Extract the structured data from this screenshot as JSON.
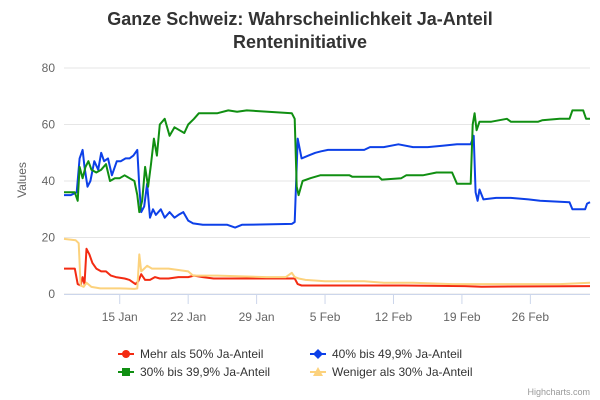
{
  "chart_data": {
    "type": "line",
    "title_line1": "Ganze Schweiz: Wahrscheinlichkeit Ja-Anteil",
    "title_line2": "Renteninitiative",
    "ylabel": "Values",
    "xlabel": "",
    "ylim": [
      0,
      80
    ],
    "yticks": [
      0,
      20,
      40,
      60,
      80
    ],
    "grid": true,
    "legend_position": "bottom",
    "x_ticks": [
      {
        "day": 15,
        "label": "15 Jan"
      },
      {
        "day": 22,
        "label": "22 Jan"
      },
      {
        "day": 29,
        "label": "29 Jan"
      },
      {
        "day": 36,
        "label": "5 Feb"
      },
      {
        "day": 43,
        "label": "12 Feb"
      },
      {
        "day": 50,
        "label": "19 Feb"
      },
      {
        "day": 57,
        "label": "26 Feb"
      }
    ],
    "xrange": [
      9.3,
      63.1
    ],
    "series": [
      {
        "name": "Mehr als 50% Ja-Anteil",
        "color": "#f32b12",
        "marker": "circle",
        "points": [
          [
            9.3,
            9
          ],
          [
            10.4,
            9
          ],
          [
            10.7,
            3.5
          ],
          [
            11.0,
            3
          ],
          [
            11.2,
            6
          ],
          [
            11.4,
            3.5
          ],
          [
            11.6,
            16
          ],
          [
            11.9,
            14
          ],
          [
            12.2,
            11
          ],
          [
            12.6,
            9
          ],
          [
            13.1,
            8
          ],
          [
            13.6,
            8
          ],
          [
            14.1,
            6.5
          ],
          [
            14.6,
            6
          ],
          [
            15.5,
            5.5
          ],
          [
            16.0,
            5
          ],
          [
            16.6,
            3.5
          ],
          [
            16.9,
            4.5
          ],
          [
            17.2,
            7
          ],
          [
            17.6,
            5
          ],
          [
            18.1,
            5
          ],
          [
            18.6,
            6
          ],
          [
            19.1,
            5.5
          ],
          [
            20.0,
            5.5
          ],
          [
            21.0,
            6
          ],
          [
            22.0,
            6
          ],
          [
            22.6,
            6.5
          ],
          [
            23.5,
            6
          ],
          [
            24.6,
            5.5
          ],
          [
            29.0,
            5.5
          ],
          [
            32.9,
            5.5
          ],
          [
            33.2,
            3.5
          ],
          [
            33.6,
            3
          ],
          [
            36.0,
            3
          ],
          [
            44.0,
            3
          ],
          [
            50.3,
            2.8
          ],
          [
            52.0,
            2.6
          ],
          [
            63.1,
            2.8
          ]
        ]
      },
      {
        "name": "40% bis 49,9% Ja-Anteil",
        "color": "#0d40e8",
        "marker": "diamond",
        "points": [
          [
            9.3,
            35
          ],
          [
            10.0,
            35
          ],
          [
            10.6,
            36
          ],
          [
            10.9,
            48
          ],
          [
            11.2,
            51
          ],
          [
            11.4,
            45
          ],
          [
            11.7,
            38
          ],
          [
            12.0,
            40
          ],
          [
            12.4,
            47
          ],
          [
            12.8,
            44
          ],
          [
            13.1,
            50
          ],
          [
            13.4,
            47
          ],
          [
            13.8,
            48
          ],
          [
            14.2,
            42
          ],
          [
            14.7,
            47
          ],
          [
            15.1,
            47
          ],
          [
            15.6,
            48
          ],
          [
            16.0,
            48
          ],
          [
            16.4,
            49
          ],
          [
            16.8,
            51
          ],
          [
            17.0,
            38
          ],
          [
            17.2,
            29
          ],
          [
            17.5,
            31
          ],
          [
            17.8,
            39
          ],
          [
            18.1,
            27
          ],
          [
            18.4,
            30
          ],
          [
            18.7,
            28
          ],
          [
            19.2,
            30
          ],
          [
            19.6,
            27
          ],
          [
            20.1,
            29
          ],
          [
            20.6,
            27
          ],
          [
            21.0,
            28
          ],
          [
            21.5,
            29
          ],
          [
            22.0,
            26
          ],
          [
            22.5,
            25
          ],
          [
            23.5,
            24.5
          ],
          [
            26.0,
            24.5
          ],
          [
            26.8,
            23.5
          ],
          [
            27.5,
            24.5
          ],
          [
            32.6,
            24.8
          ],
          [
            32.9,
            25.5
          ],
          [
            33.2,
            55
          ],
          [
            33.6,
            48
          ],
          [
            34.3,
            49
          ],
          [
            35.0,
            50
          ],
          [
            35.6,
            50.5
          ],
          [
            36.3,
            51
          ],
          [
            40.0,
            51
          ],
          [
            40.6,
            52
          ],
          [
            42.0,
            52
          ],
          [
            43.5,
            53
          ],
          [
            45.0,
            52
          ],
          [
            46.5,
            52
          ],
          [
            48.0,
            52.5
          ],
          [
            49.5,
            53
          ],
          [
            50.9,
            53
          ],
          [
            51.2,
            56
          ],
          [
            51.4,
            36
          ],
          [
            51.6,
            33
          ],
          [
            51.8,
            37
          ],
          [
            52.2,
            33.5
          ],
          [
            53.5,
            34
          ],
          [
            55.0,
            34
          ],
          [
            56.8,
            33.5
          ],
          [
            58.0,
            33
          ],
          [
            61.0,
            32.5
          ],
          [
            61.3,
            30
          ],
          [
            62.6,
            30
          ],
          [
            62.8,
            32
          ],
          [
            63.1,
            32.5
          ]
        ]
      },
      {
        "name": "30% bis 39,9% Ja-Anteil",
        "color": "#108f12",
        "marker": "square",
        "points": [
          [
            9.3,
            36
          ],
          [
            10.4,
            36
          ],
          [
            10.7,
            33
          ],
          [
            10.9,
            45
          ],
          [
            11.2,
            41
          ],
          [
            11.5,
            45
          ],
          [
            11.8,
            47
          ],
          [
            12.1,
            44
          ],
          [
            12.6,
            43
          ],
          [
            13.1,
            44
          ],
          [
            13.6,
            46
          ],
          [
            14.0,
            40
          ],
          [
            14.5,
            41
          ],
          [
            15.0,
            41
          ],
          [
            15.5,
            42
          ],
          [
            16.0,
            41
          ],
          [
            16.5,
            40
          ],
          [
            16.8,
            35
          ],
          [
            17.0,
            29
          ],
          [
            17.3,
            33
          ],
          [
            17.6,
            45
          ],
          [
            17.9,
            38
          ],
          [
            18.2,
            46
          ],
          [
            18.5,
            55
          ],
          [
            18.8,
            49
          ],
          [
            19.1,
            60
          ],
          [
            19.6,
            62
          ],
          [
            20.1,
            56
          ],
          [
            20.6,
            59
          ],
          [
            21.1,
            58
          ],
          [
            21.6,
            57
          ],
          [
            22.0,
            60
          ],
          [
            22.6,
            62
          ],
          [
            23.1,
            64
          ],
          [
            25.0,
            64
          ],
          [
            26.1,
            65
          ],
          [
            27.0,
            64.5
          ],
          [
            28.0,
            65
          ],
          [
            32.6,
            64
          ],
          [
            32.9,
            62
          ],
          [
            33.1,
            38
          ],
          [
            33.3,
            35
          ],
          [
            33.7,
            40
          ],
          [
            34.5,
            41
          ],
          [
            35.5,
            42
          ],
          [
            38.5,
            42
          ],
          [
            38.8,
            41.5
          ],
          [
            41.5,
            41.5
          ],
          [
            41.8,
            40.5
          ],
          [
            43.8,
            41
          ],
          [
            44.3,
            42
          ],
          [
            46.0,
            42
          ],
          [
            47.4,
            43
          ],
          [
            49.0,
            43
          ],
          [
            49.5,
            39
          ],
          [
            50.9,
            39
          ],
          [
            51.1,
            60
          ],
          [
            51.3,
            64
          ],
          [
            51.5,
            58
          ],
          [
            51.8,
            61
          ],
          [
            53.0,
            61
          ],
          [
            54.6,
            62
          ],
          [
            55.0,
            61
          ],
          [
            57.8,
            61
          ],
          [
            58.2,
            61.5
          ],
          [
            60.0,
            62
          ],
          [
            61.0,
            62
          ],
          [
            61.3,
            65
          ],
          [
            62.4,
            65
          ],
          [
            62.7,
            62
          ],
          [
            63.1,
            62
          ]
        ]
      },
      {
        "name": "Weniger als 30% Ja-Anteil",
        "color": "#fcd27d",
        "marker": "triangle",
        "points": [
          [
            9.3,
            19.5
          ],
          [
            10.5,
            19
          ],
          [
            10.8,
            18
          ],
          [
            11.0,
            3
          ],
          [
            11.3,
            2.5
          ],
          [
            11.6,
            4
          ],
          [
            12.1,
            2.5
          ],
          [
            13.0,
            2
          ],
          [
            15.0,
            2
          ],
          [
            16.5,
            1.8
          ],
          [
            16.8,
            2
          ],
          [
            17.0,
            14
          ],
          [
            17.2,
            8
          ],
          [
            17.5,
            9
          ],
          [
            17.8,
            10
          ],
          [
            18.3,
            9
          ],
          [
            19.0,
            9
          ],
          [
            20.0,
            9
          ],
          [
            21.0,
            8.5
          ],
          [
            22.0,
            8
          ],
          [
            22.5,
            6.5
          ],
          [
            23.5,
            6.5
          ],
          [
            25.0,
            6.5
          ],
          [
            30.0,
            6
          ],
          [
            32.0,
            6
          ],
          [
            32.6,
            7.5
          ],
          [
            32.9,
            6
          ],
          [
            33.3,
            5.5
          ],
          [
            34.0,
            5
          ],
          [
            36.0,
            4.5
          ],
          [
            40.0,
            4.5
          ],
          [
            42.0,
            4
          ],
          [
            45.0,
            4
          ],
          [
            49.0,
            3.5
          ],
          [
            52.0,
            3.5
          ],
          [
            56.0,
            3.5
          ],
          [
            60.0,
            3.5
          ],
          [
            63.1,
            4
          ]
        ]
      }
    ],
    "credit": "Highcharts.com"
  }
}
